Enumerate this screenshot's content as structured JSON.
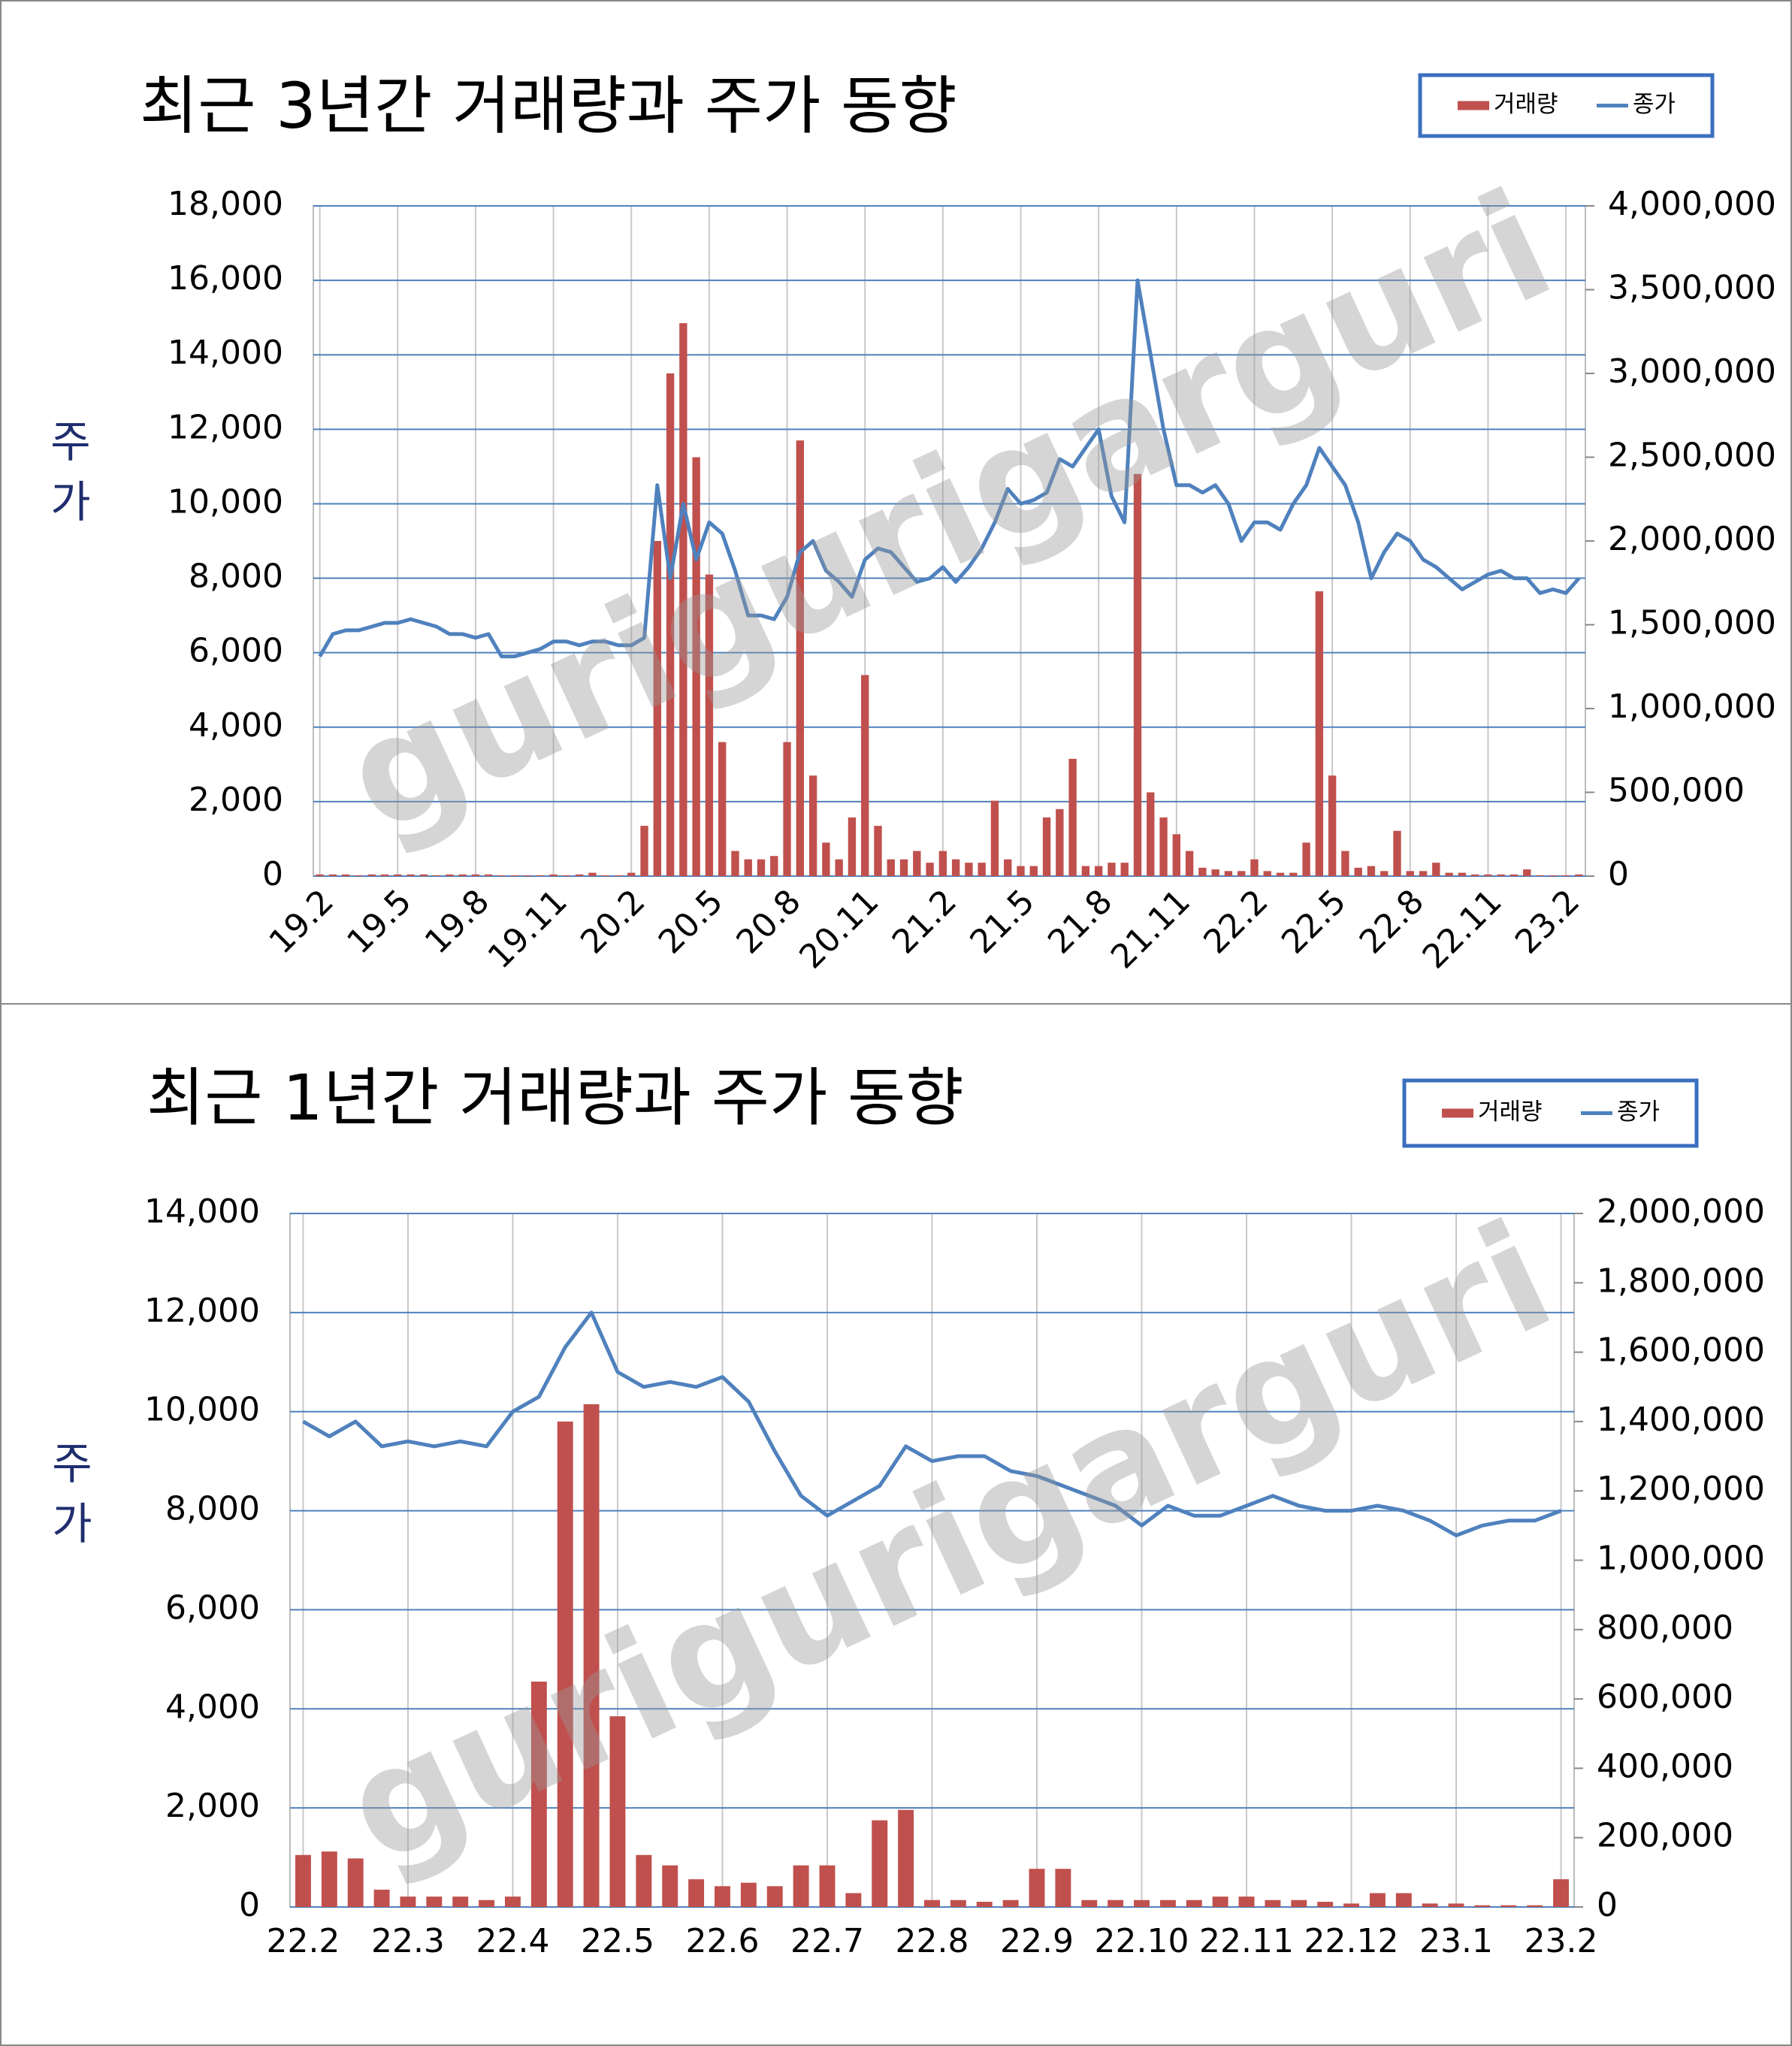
{
  "chart_data": [
    {
      "type": "combo",
      "title": "최근 3년간 거래량과 주가 동향",
      "y_label": "주가",
      "watermark": "gurigurigarguri",
      "grid": true,
      "legend": "top-right",
      "categories": [
        "19.2",
        null,
        null,
        null,
        null,
        null,
        "19.5",
        null,
        null,
        null,
        null,
        null,
        "19.8",
        null,
        null,
        null,
        null,
        null,
        "19.11",
        null,
        null,
        null,
        null,
        null,
        "20.2",
        null,
        null,
        null,
        null,
        null,
        "20.5",
        null,
        null,
        null,
        null,
        null,
        "20.8",
        null,
        null,
        null,
        null,
        null,
        "20.11",
        null,
        null,
        null,
        null,
        null,
        "21.2",
        null,
        null,
        null,
        null,
        null,
        "21.5",
        null,
        null,
        null,
        null,
        null,
        "21.8",
        null,
        null,
        null,
        null,
        null,
        "21.11",
        null,
        null,
        null,
        null,
        null,
        "22.2",
        null,
        null,
        null,
        null,
        null,
        "22.5",
        null,
        null,
        null,
        null,
        null,
        "22.8",
        null,
        null,
        null,
        null,
        null,
        "22.11",
        null,
        null,
        null,
        null,
        null,
        "23.2",
        null
      ],
      "ylim": [
        0,
        18000
      ],
      "yticks": [
        0,
        {
          "value": 2000,
          "label": "2,000"
        },
        {
          "value": 4000,
          "label": "4,000"
        },
        {
          "value": 6000,
          "label": "6,000"
        },
        {
          "value": 8000,
          "label": "8,000"
        },
        {
          "value": 10000,
          "label": "10,000"
        },
        {
          "value": 12000,
          "label": "12,000"
        },
        {
          "value": 14000,
          "label": "14,000"
        },
        {
          "value": 16000,
          "label": "16,000"
        },
        {
          "value": 18000,
          "label": "18,000"
        }
      ],
      "y2lim": [
        0,
        4000000
      ],
      "y2ticks": [
        0,
        {
          "value": 500000,
          "label": "500,000"
        },
        {
          "value": 1000000,
          "label": "1,000,000"
        },
        {
          "value": 1500000,
          "label": "1,500,000"
        },
        {
          "value": 2000000,
          "label": "2,000,000"
        },
        {
          "value": 2500000,
          "label": "2,500,000"
        },
        {
          "value": 3000000,
          "label": "3,000,000"
        },
        {
          "value": 3500000,
          "label": "3,500,000"
        },
        {
          "value": 4000000,
          "label": "4,000,000"
        }
      ],
      "series": [
        {
          "name": "거래량",
          "type": "bar",
          "axis": "y2",
          "color": "#c0504d",
          "values": [
            10000,
            10000,
            10000,
            5000,
            10000,
            10000,
            10000,
            10000,
            10000,
            5000,
            10000,
            10000,
            10000,
            10000,
            5000,
            5000,
            5000,
            5000,
            10000,
            5000,
            10000,
            20000,
            5000,
            5000,
            20000,
            300000,
            2000000,
            3000000,
            3300000,
            2500000,
            1800000,
            800000,
            150000,
            100000,
            100000,
            120000,
            800000,
            2600000,
            600000,
            200000,
            100000,
            350000,
            1200000,
            300000,
            100000,
            100000,
            150000,
            80000,
            150000,
            100000,
            80000,
            80000,
            450000,
            100000,
            60000,
            60000,
            350000,
            400000,
            700000,
            60000,
            60000,
            80000,
            80000,
            2400000,
            500000,
            350000,
            250000,
            150000,
            50000,
            40000,
            30000,
            30000,
            100000,
            30000,
            20000,
            20000,
            200000,
            1700000,
            600000,
            150000,
            50000,
            60000,
            30000,
            270000,
            30000,
            30000,
            80000,
            20000,
            20000,
            10000,
            10000,
            10000,
            10000,
            40000,
            5000,
            5000,
            5000,
            10000
          ]
        },
        {
          "name": "종가",
          "type": "line",
          "color": "#4f81bd",
          "values": [
            5900,
            6500,
            6600,
            6600,
            6700,
            6800,
            6800,
            6900,
            6800,
            6700,
            6500,
            6500,
            6400,
            6500,
            5900,
            5900,
            6000,
            6100,
            6300,
            6300,
            6200,
            6300,
            6300,
            6200,
            6200,
            6400,
            10500,
            8000,
            10000,
            8500,
            9500,
            9200,
            8200,
            7000,
            7000,
            6900,
            7500,
            8700,
            9000,
            8200,
            7900,
            7500,
            8500,
            8800,
            8700,
            8300,
            7900,
            8000,
            8300,
            7900,
            8300,
            8800,
            9500,
            10400,
            10000,
            10100,
            10300,
            11200,
            11000,
            11500,
            12000,
            10200,
            9500,
            16000,
            14000,
            12000,
            10500,
            10500,
            10300,
            10500,
            10000,
            9000,
            9500,
            9500,
            9300,
            10000,
            10500,
            11500,
            11000,
            10500,
            9500,
            8000,
            8700,
            9200,
            9000,
            8500,
            8300,
            8000,
            7700,
            7900,
            8100,
            8200,
            8000,
            8000,
            7600,
            7700,
            7600,
            8000
          ]
        }
      ]
    },
    {
      "type": "combo",
      "title": "최근 1년간 거래량과 주가 동향",
      "y_label": "주가",
      "watermark": "gurigurigarguri",
      "grid": true,
      "legend": "top-right",
      "categories": [
        "22.2",
        null,
        null,
        null,
        "22.3",
        null,
        null,
        null,
        "22.4",
        null,
        null,
        null,
        "22.5",
        null,
        null,
        null,
        "22.6",
        null,
        null,
        null,
        "22.7",
        null,
        null,
        null,
        "22.8",
        null,
        null,
        null,
        "22.9",
        null,
        null,
        null,
        "22.10",
        null,
        null,
        null,
        "22.11",
        null,
        null,
        null,
        "22.12",
        null,
        null,
        null,
        "23.1",
        null,
        null,
        null,
        "23.2"
      ],
      "ylim": [
        0,
        14000
      ],
      "yticks": [
        0,
        {
          "value": 2000,
          "label": "2,000"
        },
        {
          "value": 4000,
          "label": "4,000"
        },
        {
          "value": 6000,
          "label": "6,000"
        },
        {
          "value": 8000,
          "label": "8,000"
        },
        {
          "value": 10000,
          "label": "10,000"
        },
        {
          "value": 12000,
          "label": "12,000"
        },
        {
          "value": 14000,
          "label": "14,000"
        }
      ],
      "y2lim": [
        0,
        2000000
      ],
      "y2ticks": [
        0,
        {
          "value": 200000,
          "label": "200,000"
        },
        {
          "value": 400000,
          "label": "400,000"
        },
        {
          "value": 600000,
          "label": "600,000"
        },
        {
          "value": 800000,
          "label": "800,000"
        },
        {
          "value": 1000000,
          "label": "1,000,000"
        },
        {
          "value": 1200000,
          "label": "1,200,000"
        },
        {
          "value": 1400000,
          "label": "1,400,000"
        },
        {
          "value": 1600000,
          "label": "1,600,000"
        },
        {
          "value": 1800000,
          "label": "1,800,000"
        },
        {
          "value": 2000000,
          "label": "2,000,000"
        }
      ],
      "series": [
        {
          "name": "거래량",
          "type": "bar",
          "axis": "y2",
          "color": "#c0504d",
          "values": [
            150000,
            160000,
            140000,
            50000,
            30000,
            30000,
            30000,
            20000,
            30000,
            650000,
            1400000,
            1450000,
            550000,
            150000,
            120000,
            80000,
            60000,
            70000,
            60000,
            120000,
            120000,
            40000,
            250000,
            280000,
            20000,
            20000,
            15000,
            20000,
            110000,
            110000,
            20000,
            20000,
            20000,
            20000,
            20000,
            30000,
            30000,
            20000,
            20000,
            15000,
            10000,
            40000,
            40000,
            10000,
            10000,
            5000,
            5000,
            5000,
            80000
          ]
        },
        {
          "name": "종가",
          "type": "line",
          "color": "#4f81bd",
          "values": [
            9800,
            9500,
            9800,
            9300,
            9400,
            9300,
            9400,
            9300,
            10000,
            10300,
            11300,
            12000,
            10800,
            10500,
            10600,
            10500,
            10700,
            10200,
            9200,
            8300,
            7900,
            8200,
            8500,
            9300,
            9000,
            9100,
            9100,
            8800,
            8700,
            8500,
            8300,
            8100,
            7700,
            8100,
            7900,
            7900,
            8100,
            8300,
            8100,
            8000,
            8000,
            8100,
            8000,
            7800,
            7500,
            7700,
            7800,
            7800,
            8000
          ]
        }
      ]
    }
  ]
}
